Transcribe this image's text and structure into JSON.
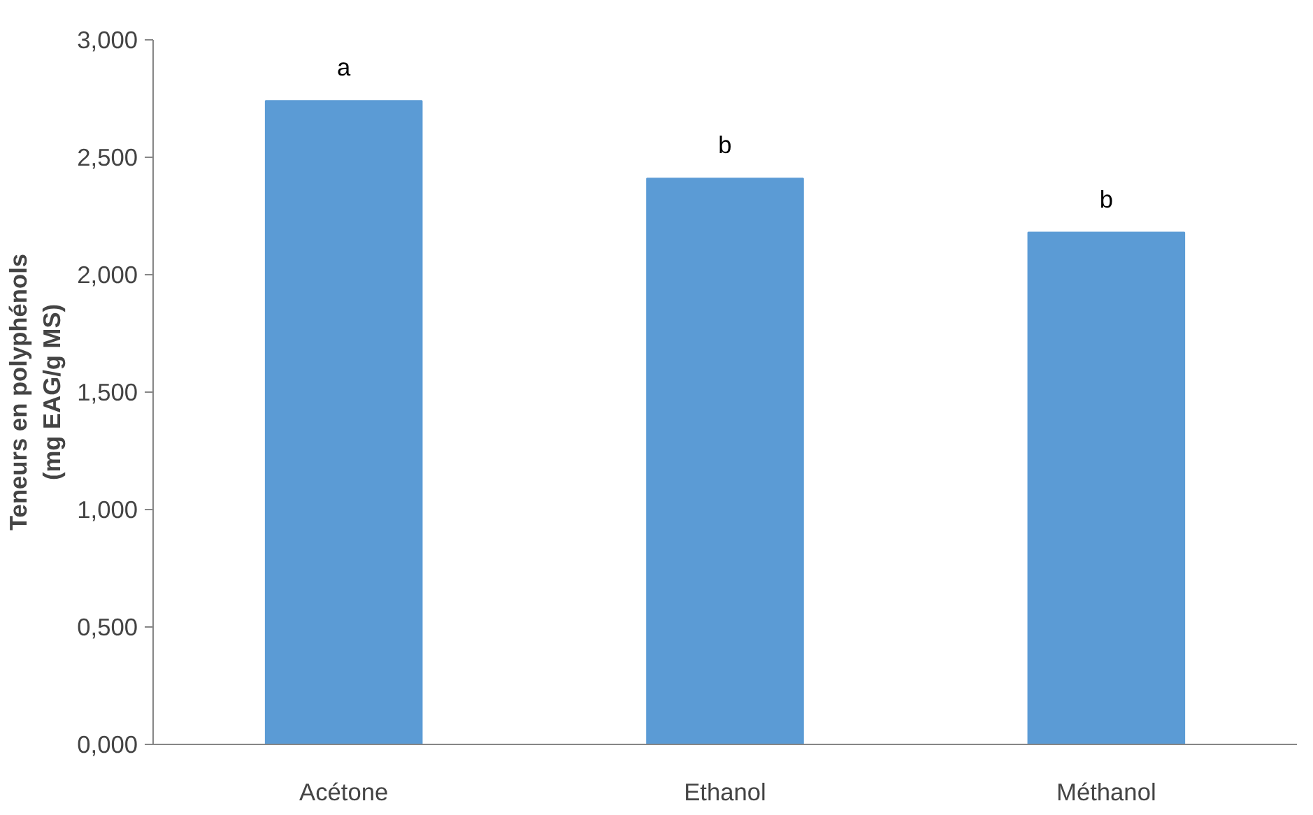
{
  "chart_data": {
    "type": "bar",
    "ylabel": "Teneurs en polyphénols\n(mg EAG/g MS)",
    "categories": [
      "Acétone",
      "Ethanol",
      "Méthanol"
    ],
    "values": [
      2.74,
      2.41,
      2.18
    ],
    "color": "#5b9bd5",
    "ylim": [
      0,
      3
    ],
    "yticks": [
      {
        "value": 0,
        "label": "0,000"
      },
      {
        "value": 0.5,
        "label": "0,500"
      },
      {
        "value": 1,
        "label": "1,000"
      },
      {
        "value": 1.5,
        "label": "1,500"
      },
      {
        "value": 2,
        "label": "2,000"
      },
      {
        "value": 2.5,
        "label": "2,500"
      },
      {
        "value": 3,
        "label": "3,000"
      }
    ],
    "annotations": [
      {
        "text": "a",
        "x": "Acétone",
        "y": 2.74
      },
      {
        "text": "b",
        "x": "Ethanol",
        "y": 2.41
      },
      {
        "text": "b",
        "x": "Méthanol",
        "y": 2.18
      }
    ]
  }
}
